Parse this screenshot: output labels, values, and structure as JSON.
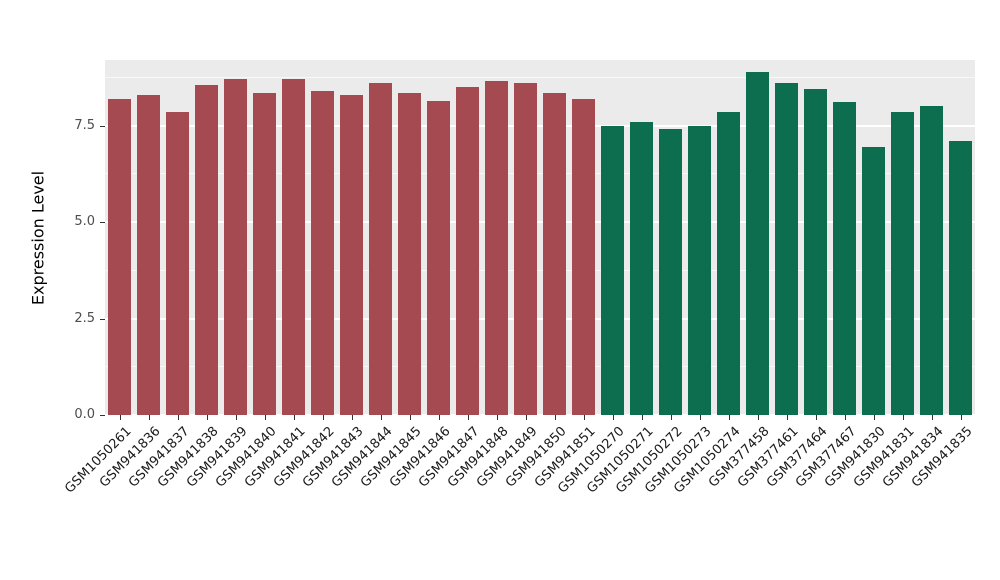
{
  "chart_data": {
    "type": "bar",
    "ylabel": "Expression Level",
    "xlabel": "",
    "ylim": [
      0,
      9.2
    ],
    "yticks": [
      0,
      2.5,
      5,
      7.5
    ],
    "ytick_labels": [
      "0.0",
      "2.5",
      "5.0",
      "7.5"
    ],
    "yticks_minor": [
      1.25,
      3.75,
      6.25,
      8.75
    ],
    "grid": "horizontal-white-on-gray",
    "legend": "none",
    "panel_bg": "#EBEBEB",
    "bar_width_fraction": 0.8,
    "group_colors": {
      "red": "#A64A52",
      "green": "#0D6D4F"
    },
    "categories": [
      "GSM1050261",
      "GSM941836",
      "GSM941837",
      "GSM941838",
      "GSM941839",
      "GSM941840",
      "GSM941841",
      "GSM941842",
      "GSM941843",
      "GSM941844",
      "GSM941845",
      "GSM941846",
      "GSM941847",
      "GSM941848",
      "GSM941849",
      "GSM941850",
      "GSM941851",
      "GSM1050270",
      "GSM1050271",
      "GSM1050272",
      "GSM1050273",
      "GSM1050274",
      "GSM377458",
      "GSM377461",
      "GSM377464",
      "GSM377467",
      "GSM941830",
      "GSM941831",
      "GSM941834",
      "GSM941835"
    ],
    "values": [
      8.2,
      8.3,
      7.85,
      8.55,
      8.7,
      8.35,
      8.7,
      8.4,
      8.3,
      8.6,
      8.35,
      8.15,
      8.5,
      8.65,
      8.6,
      8.35,
      8.2,
      7.5,
      7.6,
      7.4,
      7.5,
      7.85,
      8.9,
      8.6,
      8.45,
      8.1,
      6.95,
      7.85,
      8.0,
      7.1
    ],
    "groups": [
      "red",
      "red",
      "red",
      "red",
      "red",
      "red",
      "red",
      "red",
      "red",
      "red",
      "red",
      "red",
      "red",
      "red",
      "red",
      "red",
      "red",
      "green",
      "green",
      "green",
      "green",
      "green",
      "green",
      "green",
      "green",
      "green",
      "green",
      "green",
      "green",
      "green"
    ]
  }
}
